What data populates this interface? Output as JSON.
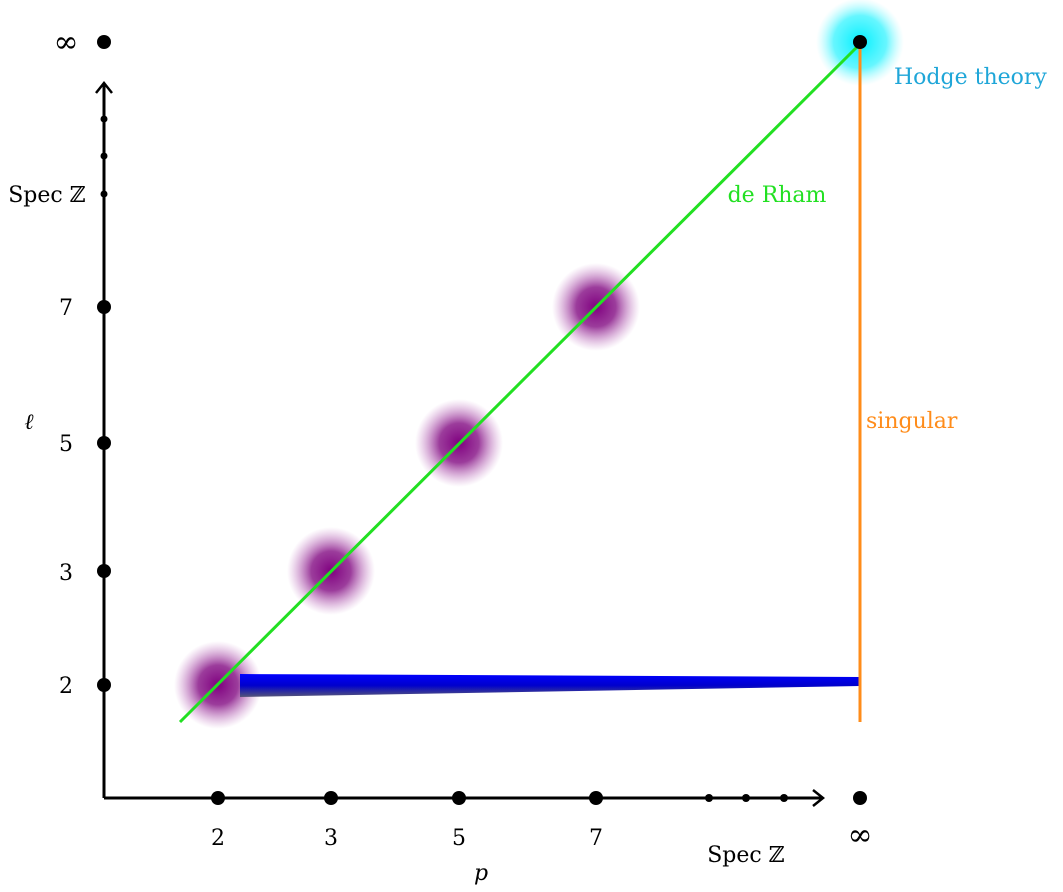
{
  "x_axis": {
    "ticks": [
      "2",
      "3",
      "5",
      "7"
    ],
    "infinity_label": "∞",
    "spec_label": "Spec ℤ",
    "variable_label": "p"
  },
  "y_axis": {
    "ticks": [
      "2",
      "3",
      "5",
      "7"
    ],
    "infinity_label": "∞",
    "spec_label": "Spec ℤ",
    "variable_label": "ℓ"
  },
  "lines": {
    "de_rham": {
      "label": "de Rham",
      "color": "#22e022"
    },
    "singular": {
      "label": "singular",
      "color": "#ff8c1a"
    },
    "hodge": {
      "label": "Hodge theory",
      "color": "#1fa6d8",
      "glow_color": "#00f0ff"
    },
    "etale_band": {
      "color": "#0000ee"
    }
  },
  "blob_color": "#800080"
}
